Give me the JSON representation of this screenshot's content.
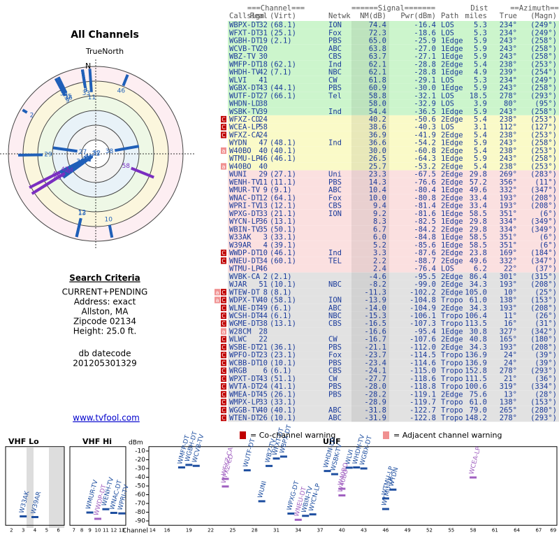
{
  "title": "All Channels",
  "polar": {
    "north_label": "TrueNorth",
    "n": "N"
  },
  "criteria": {
    "heading": "Search Criteria",
    "lines": [
      "CURRENT+PENDING",
      "Address: exact",
      "Allston, MA",
      "Zipcode 02134",
      "Height: 25.0 ft."
    ],
    "db_label": "db datecode",
    "db_code": "201205301329",
    "link": "www.tvfool.com"
  },
  "table": {
    "group_headers": [
      "===Channel===",
      "======Signal=======",
      "Dist",
      "==Azimuth=="
    ],
    "headers": [
      "Callsign",
      "Real",
      "(Virt)",
      "Netwk",
      "NM(dB)",
      "Pwr(dBm)",
      "Path",
      "miles",
      "True",
      "(Magn)"
    ],
    "rows": [
      [
        "WBPX-DT",
        "32",
        "(68.1)",
        "ION",
        "74.4",
        "-16.4",
        "LOS",
        "5.3",
        "234°",
        "(249°)"
      ],
      [
        "WFXT-DT",
        "31",
        "(25.1)",
        "Fox",
        "72.3",
        "-18.6",
        "LOS",
        "5.3",
        "234°",
        "(249°)"
      ],
      [
        "WGBH-DT",
        "19",
        "(2.1)",
        "PBS",
        "65.0",
        "-25.9",
        "1Edge",
        "5.9",
        "243°",
        "(258°)"
      ],
      [
        "WCVB-TV",
        "20",
        null,
        "ABC",
        "63.8",
        "-27.0",
        "1Edge",
        "5.9",
        "243°",
        "(258°)"
      ],
      [
        "WBZ-TV",
        "30",
        null,
        "CBS",
        "63.7",
        "-27.1",
        "1Edge",
        "5.9",
        "243°",
        "(258°)"
      ],
      [
        "WMFP-DT",
        "18",
        "(62.1)",
        "Ind",
        "62.1",
        "-28.8",
        "2Edge",
        "5.4",
        "238°",
        "(253°)"
      ],
      [
        "WHDH-TV",
        "42",
        "(7.1)",
        "NBC",
        "62.1",
        "-28.8",
        "1Edge",
        "4.9",
        "239°",
        "(254°)"
      ],
      [
        "WLVI",
        "41",
        null,
        "CW",
        "61.8",
        "-29.1",
        "LOS",
        "5.3",
        "234°",
        "(249°)"
      ],
      [
        "WGBX-DT",
        "43",
        "(44.1)",
        "PBS",
        "60.9",
        "-30.0",
        "1Edge",
        "5.9",
        "243°",
        "(258°)"
      ],
      [
        "WUTF-DT",
        "27",
        "(66.1)",
        "Tel",
        "58.8",
        "-32.1",
        "LOS",
        "18.5",
        "278°",
        "(293°)"
      ],
      [
        "WHDN-LD",
        "38",
        null,
        null,
        "58.0",
        "-32.9",
        "LOS",
        "3.9",
        "80°",
        "(95°)"
      ],
      [
        "WSBK-TV",
        "39",
        null,
        "Ind",
        "54.4",
        "-36.5",
        "1Edge",
        "5.9",
        "243°",
        "(258°)"
      ],
      [
        "WFXZ-CD",
        "24",
        null,
        null,
        "40.2",
        "-50.6",
        "2Edge",
        "5.4",
        "238°",
        "(253°)"
      ],
      [
        "WCEA-LP",
        "58",
        null,
        null,
        "38.6",
        "-40.3",
        "LOS",
        "3.1",
        "112°",
        "(127°)"
      ],
      [
        "WFXZ-CA",
        "24",
        null,
        null,
        "36.9",
        "-41.9",
        "2Edge",
        "5.4",
        "238°",
        "(253°)"
      ],
      [
        "WYDN",
        "47",
        "(48.1)",
        "Ind",
        "36.6",
        "-54.2",
        "1Edge",
        "5.9",
        "243°",
        "(258°)"
      ],
      [
        "W40BO",
        "40",
        "(40.1)",
        null,
        "30.0",
        "-60.8",
        "2Edge",
        "5.4",
        "238°",
        "(253°)"
      ],
      [
        "WTMU-LP",
        "46",
        "(46.1)",
        null,
        "26.5",
        "-64.3",
        "1Edge",
        "5.9",
        "243°",
        "(258°)"
      ],
      [
        "W40BO",
        "40",
        null,
        null,
        "25.7",
        "-53.2",
        "2Edge",
        "5.4",
        "238°",
        "(253°)"
      ],
      [
        "WUNI",
        "29",
        "(27.1)",
        "Uni",
        "23.3",
        "-67.5",
        "2Edge",
        "29.8",
        "269°",
        "(283°)"
      ],
      [
        "WENH-TV",
        "11",
        "(11.1)",
        "PBS",
        "14.3",
        "-76.6",
        "2Edge",
        "57.2",
        "356°",
        "(11°)"
      ],
      [
        "WMUR-TV",
        "9",
        "(9.1)",
        "ABC",
        "10.4",
        "-80.4",
        "1Edge",
        "49.6",
        "332°",
        "(347°)"
      ],
      [
        "WNAC-DT",
        "12",
        "(64.1)",
        "Fox",
        "10.0",
        "-80.8",
        "2Edge",
        "33.4",
        "193°",
        "(208°)"
      ],
      [
        "WPRI-TV",
        "13",
        "(12.1)",
        "CBS",
        "9.4",
        "-81.4",
        "2Edge",
        "33.4",
        "193°",
        "(208°)"
      ],
      [
        "WPXG-DT",
        "33",
        "(21.1)",
        "ION",
        "9.2",
        "-81.6",
        "1Edge",
        "58.5",
        "351°",
        "(6°)"
      ],
      [
        "WYCN-LP",
        "36",
        "(13.1)",
        null,
        "8.3",
        "-82.5",
        "1Edge",
        "29.8",
        "334°",
        "(349°)"
      ],
      [
        "WBIN-TV",
        "35",
        "(50.1)",
        null,
        "6.7",
        "-84.2",
        "2Edge",
        "29.8",
        "334°",
        "(349°)"
      ],
      [
        "W33AK",
        "3",
        "(33.1)",
        null,
        "6.0",
        "-84.8",
        "1Edge",
        "58.5",
        "351°",
        "(6°)"
      ],
      [
        "W39AR",
        "4",
        "(39.1)",
        null,
        "5.2",
        "-85.6",
        "1Edge",
        "58.5",
        "351°",
        "(6°)"
      ],
      [
        "WWDP-DT",
        "10",
        "(46.1)",
        "Ind",
        "3.3",
        "-87.6",
        "2Edge",
        "23.8",
        "169°",
        "(184°)"
      ],
      [
        "WNEU-DT",
        "34",
        "(60.1)",
        "TEL",
        "2.2",
        "-88.7",
        "2Edge",
        "49.6",
        "332°",
        "(347°)"
      ],
      [
        "WTMU-LP",
        "46",
        null,
        null,
        "2.4",
        "-76.4",
        "LOS",
        "6.2",
        "22°",
        "(37°)"
      ],
      [
        "WVBK-CA",
        "2",
        "(2.1)",
        null,
        "-4.6",
        "-95.5",
        "2Edge",
        "86.4",
        "301°",
        "(315°)"
      ],
      [
        "WJAR",
        "51",
        "(10.1)",
        "NBC",
        "-8.2",
        "-99.0",
        "2Edge",
        "34.3",
        "193°",
        "(208°)"
      ],
      [
        "WTEW-DT",
        "8",
        "(8.1)",
        null,
        "-11.3",
        "-102.2",
        "2Edge",
        "105.0",
        "10°",
        "(25°)"
      ],
      [
        "WDPX-TV",
        "40",
        "(58.1)",
        "ION",
        "-13.9",
        "-104.8",
        "Tropo",
        "61.0",
        "138°",
        "(153°)"
      ],
      [
        "WLNE-DT",
        "49",
        "(6.1)",
        "ABC",
        "-14.0",
        "-104.9",
        "2Edge",
        "34.3",
        "193°",
        "(208°)"
      ],
      [
        "WCSH-DT",
        "44",
        "(6.1)",
        "NBC",
        "-15.3",
        "-106.1",
        "Tropo",
        "106.4",
        "11°",
        "(26°)"
      ],
      [
        "WGME-DT",
        "38",
        "(13.1)",
        "CBS",
        "-16.5",
        "-107.3",
        "Tropo",
        "113.5",
        "16°",
        "(31°)"
      ],
      [
        "W28CM",
        "28",
        null,
        null,
        "-16.6",
        "-95.4",
        "1Edge",
        "30.8",
        "327°",
        "(342°)"
      ],
      [
        "WLWC",
        "22",
        null,
        "CW",
        "-16.7",
        "-107.6",
        "2Edge",
        "40.8",
        "165°",
        "(180°)"
      ],
      [
        "WSBE-DT",
        "21",
        "(36.1)",
        "PBS",
        "-21.1",
        "-112.0",
        "2Edge",
        "34.3",
        "193°",
        "(208°)"
      ],
      [
        "WPFO-DT",
        "23",
        "(23.1)",
        "Fox",
        "-23.7",
        "-114.5",
        "Tropo",
        "136.9",
        "24°",
        "(39°)"
      ],
      [
        "WCBB-DT",
        "10",
        "(10.1)",
        "PBS",
        "-23.4",
        "-114.6",
        "Tropo",
        "136.9",
        "24°",
        "(39°)"
      ],
      [
        "WRGB",
        "6",
        "(6.1)",
        "CBS",
        "-24.1",
        "-115.0",
        "Tropo",
        "152.8",
        "278°",
        "(293°)"
      ],
      [
        "WPXT-DT",
        "43",
        "(51.1)",
        "CW",
        "-27.7",
        "-118.6",
        "Tropo",
        "111.5",
        "21°",
        "(36°)"
      ],
      [
        "WVTA-DT",
        "24",
        "(41.1)",
        "PBS",
        "-28.0",
        "-118.8",
        "Tropo",
        "100.6",
        "319°",
        "(334°)"
      ],
      [
        "WMEA-DT",
        "45",
        "(26.1)",
        "PBS",
        "-28.2",
        "-119.1",
        "2Edge",
        "75.6",
        "13°",
        "(28°)"
      ],
      [
        "WMPX-LP",
        "33",
        "(33.1)",
        null,
        "-28.9",
        "-119.7",
        "Tropo",
        "61.0",
        "138°",
        "(153°)"
      ],
      [
        "WGGB-TV",
        "40",
        "(40.1)",
        "ABC",
        "-31.8",
        "-122.7",
        "Tropo",
        "79.0",
        "265°",
        "(280°)"
      ],
      [
        "WTEN-DT",
        "26",
        "(10.1)",
        "ABC",
        "-31.9",
        "-122.8",
        "Tropo",
        "148.2",
        "278°",
        "(293°)"
      ]
    ],
    "flags": [
      null,
      null,
      null,
      null,
      null,
      null,
      null,
      null,
      null,
      null,
      null,
      null,
      "C",
      "C",
      "C",
      null,
      "a",
      null,
      "a",
      null,
      null,
      null,
      null,
      null,
      null,
      null,
      null,
      null,
      null,
      "C",
      "C",
      null,
      null,
      null,
      "aC",
      "aC",
      "C",
      "C",
      "C",
      "a",
      "C",
      "C",
      "C",
      "C",
      "C",
      "C",
      "C",
      "C",
      "C",
      "C",
      "C"
    ]
  },
  "spectrum": {
    "axis_label": "dBm",
    "x_label": "Channel",
    "ylim": [
      -5,
      -95
    ],
    "yticks": [
      -10,
      -20,
      -30,
      -40,
      -50,
      -60,
      -70,
      -80,
      -90
    ],
    "legend": {
      "co": "C",
      "co_text": "= Co-channel warning",
      "adj": "a",
      "adj_text": "= Adjacent channel warning"
    },
    "panels": [
      {
        "title": "VHF Lo",
        "xlim": [
          1.5,
          6.5
        ],
        "xticks": [
          2,
          3,
          4,
          5,
          6
        ]
      },
      {
        "title": "VHF Hi",
        "xlim": [
          6.5,
          13.5
        ],
        "xticks": [
          7,
          8,
          9,
          10,
          11,
          12,
          13
        ]
      },
      {
        "title": "UHF",
        "xlim": [
          13.5,
          69.5
        ],
        "xticks": [
          14,
          16,
          19,
          22,
          25,
          28,
          31,
          34,
          37,
          40,
          43,
          46,
          49,
          52,
          55,
          58,
          61,
          64,
          67,
          69
        ]
      }
    ]
  }
}
